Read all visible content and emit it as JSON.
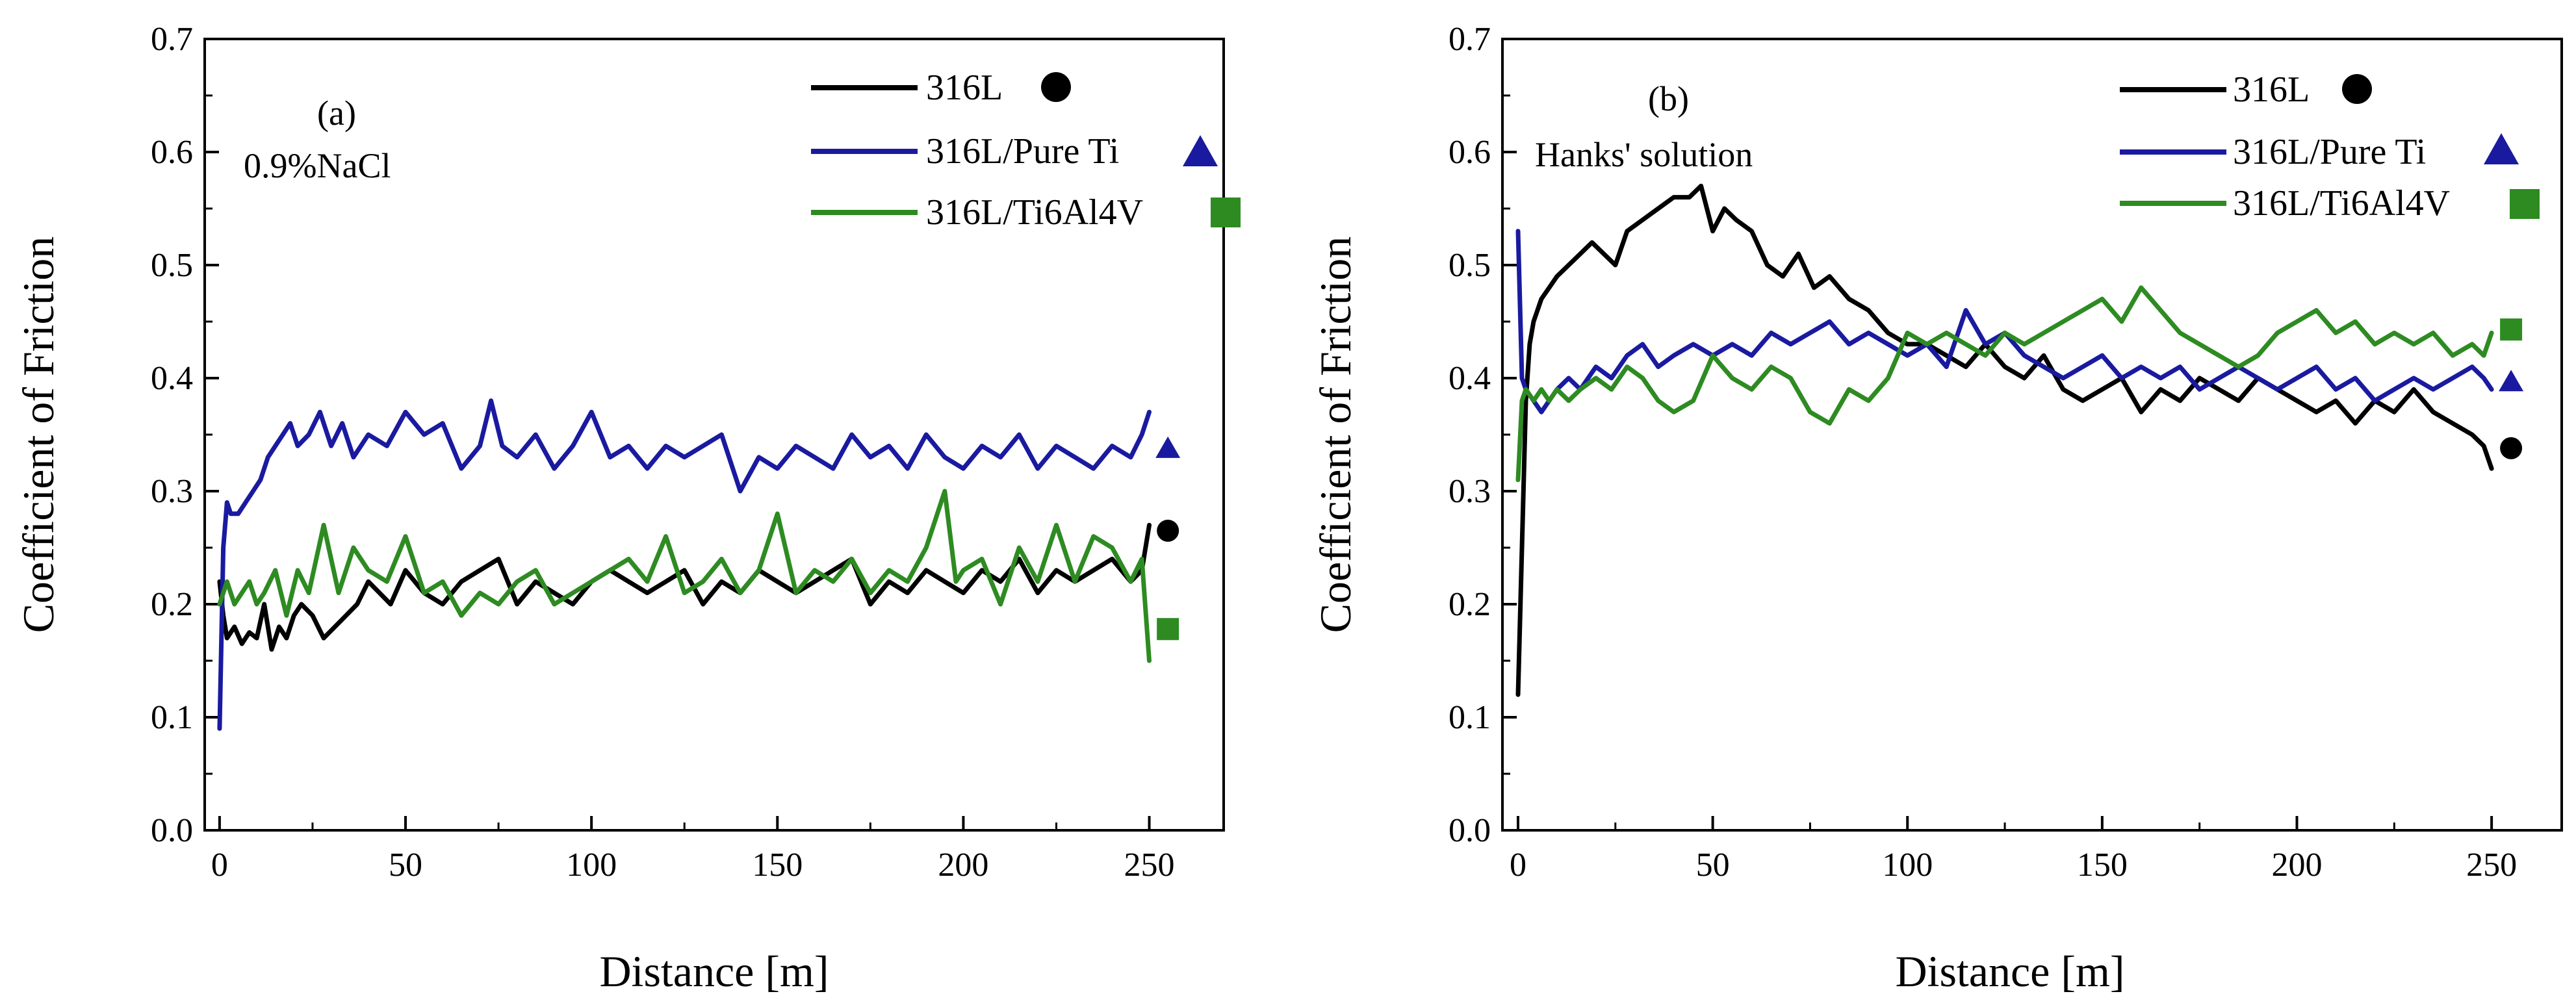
{
  "chart_data": [
    {
      "panel": "(a)",
      "type": "line",
      "title": "",
      "annotations": [
        "(a)",
        "0.9%NaCl"
      ],
      "xlabel": "Distance [m]",
      "ylabel": "Coefficient of Friction",
      "xlim": [
        -4,
        270
      ],
      "ylim": [
        0.0,
        0.7
      ],
      "xticks": [
        0,
        50,
        100,
        150,
        200,
        250
      ],
      "xtick_labels": [
        "0",
        "50",
        "100",
        "150",
        "200",
        "250"
      ],
      "yticks": [
        0.0,
        0.1,
        0.2,
        0.3,
        0.4,
        0.5,
        0.6,
        0.7
      ],
      "ytick_labels": [
        "0.0",
        "0.1",
        "0.2",
        "0.3",
        "0.4",
        "0.5",
        "0.6",
        "0.7"
      ],
      "legend_position": "top-right",
      "series": [
        {
          "name": "316L",
          "color": "#000000",
          "marker": "circle",
          "marker_point": [
            255,
            0.265
          ],
          "x": [
            0,
            1,
            2,
            4,
            6,
            8,
            10,
            12,
            14,
            16,
            18,
            20,
            22,
            25,
            28,
            31,
            34,
            37,
            40,
            43,
            46,
            50,
            55,
            60,
            65,
            70,
            75,
            80,
            85,
            90,
            95,
            100,
            105,
            110,
            115,
            120,
            125,
            130,
            135,
            140,
            145,
            150,
            155,
            160,
            165,
            170,
            175,
            180,
            185,
            190,
            195,
            200,
            205,
            210,
            215,
            220,
            225,
            230,
            235,
            240,
            245,
            248,
            250
          ],
          "values": [
            0.22,
            0.19,
            0.17,
            0.18,
            0.165,
            0.175,
            0.17,
            0.2,
            0.16,
            0.18,
            0.17,
            0.19,
            0.2,
            0.19,
            0.17,
            0.18,
            0.19,
            0.2,
            0.22,
            0.21,
            0.2,
            0.23,
            0.21,
            0.2,
            0.22,
            0.23,
            0.24,
            0.2,
            0.22,
            0.21,
            0.2,
            0.22,
            0.23,
            0.22,
            0.21,
            0.22,
            0.23,
            0.2,
            0.22,
            0.21,
            0.23,
            0.22,
            0.21,
            0.22,
            0.23,
            0.24,
            0.2,
            0.22,
            0.21,
            0.23,
            0.22,
            0.21,
            0.23,
            0.22,
            0.24,
            0.21,
            0.23,
            0.22,
            0.23,
            0.24,
            0.22,
            0.23,
            0.27
          ]
        },
        {
          "name": "316L/Pure Ti",
          "color": "#1a1aa0",
          "marker": "triangle",
          "marker_point": [
            255,
            0.338
          ],
          "x": [
            0,
            1,
            2,
            3,
            5,
            7,
            9,
            11,
            13,
            15,
            17,
            19,
            21,
            24,
            27,
            30,
            33,
            36,
            40,
            45,
            50,
            55,
            60,
            65,
            70,
            73,
            76,
            80,
            85,
            90,
            95,
            100,
            105,
            110,
            115,
            120,
            125,
            130,
            135,
            140,
            145,
            150,
            155,
            160,
            165,
            170,
            175,
            180,
            185,
            190,
            195,
            200,
            205,
            210,
            215,
            220,
            225,
            230,
            235,
            240,
            245,
            248,
            250
          ],
          "values": [
            0.09,
            0.25,
            0.29,
            0.28,
            0.28,
            0.29,
            0.3,
            0.31,
            0.33,
            0.34,
            0.35,
            0.36,
            0.34,
            0.35,
            0.37,
            0.34,
            0.36,
            0.33,
            0.35,
            0.34,
            0.37,
            0.35,
            0.36,
            0.32,
            0.34,
            0.38,
            0.34,
            0.33,
            0.35,
            0.32,
            0.34,
            0.37,
            0.33,
            0.34,
            0.32,
            0.34,
            0.33,
            0.34,
            0.35,
            0.3,
            0.33,
            0.32,
            0.34,
            0.33,
            0.32,
            0.35,
            0.33,
            0.34,
            0.32,
            0.35,
            0.33,
            0.32,
            0.34,
            0.33,
            0.35,
            0.32,
            0.34,
            0.33,
            0.32,
            0.34,
            0.33,
            0.35,
            0.37
          ]
        },
        {
          "name": "316L/Ti6Al4V",
          "color": "#2e8b22",
          "marker": "square",
          "marker_point": [
            255,
            0.178
          ],
          "x": [
            0,
            2,
            4,
            6,
            8,
            10,
            12,
            15,
            18,
            21,
            24,
            28,
            32,
            36,
            40,
            45,
            50,
            55,
            60,
            65,
            70,
            75,
            80,
            85,
            90,
            95,
            100,
            105,
            110,
            115,
            120,
            125,
            130,
            135,
            140,
            145,
            150,
            155,
            160,
            165,
            170,
            175,
            180,
            185,
            190,
            195,
            198,
            200,
            205,
            210,
            215,
            220,
            225,
            230,
            235,
            240,
            245,
            248,
            250
          ],
          "values": [
            0.2,
            0.22,
            0.2,
            0.21,
            0.22,
            0.2,
            0.21,
            0.23,
            0.19,
            0.23,
            0.21,
            0.27,
            0.21,
            0.25,
            0.23,
            0.22,
            0.26,
            0.21,
            0.22,
            0.19,
            0.21,
            0.2,
            0.22,
            0.23,
            0.2,
            0.21,
            0.22,
            0.23,
            0.24,
            0.22,
            0.26,
            0.21,
            0.22,
            0.24,
            0.21,
            0.23,
            0.28,
            0.21,
            0.23,
            0.22,
            0.24,
            0.21,
            0.23,
            0.22,
            0.25,
            0.3,
            0.22,
            0.23,
            0.24,
            0.2,
            0.25,
            0.22,
            0.27,
            0.22,
            0.26,
            0.25,
            0.22,
            0.24,
            0.15
          ]
        }
      ]
    },
    {
      "panel": "(b)",
      "type": "line",
      "title": "",
      "annotations": [
        "(b)",
        "Hanks' solution"
      ],
      "xlabel": "Distance [m]",
      "ylabel": "Coefficient of Friction",
      "xlim": [
        -4,
        268
      ],
      "ylim": [
        0.0,
        0.7
      ],
      "xticks": [
        0,
        50,
        100,
        150,
        200,
        250
      ],
      "xtick_labels": [
        "0",
        "50",
        "100",
        "150",
        "200",
        "250"
      ],
      "yticks": [
        0.0,
        0.1,
        0.2,
        0.3,
        0.4,
        0.5,
        0.6,
        0.7
      ],
      "ytick_labels": [
        "0.0",
        "0.1",
        "0.2",
        "0.3",
        "0.4",
        "0.5",
        "0.6",
        "0.7"
      ],
      "legend_position": "top-right",
      "series": [
        {
          "name": "316L",
          "color": "#000000",
          "marker": "circle",
          "marker_point": [
            255,
            0.338
          ],
          "x": [
            0,
            1,
            2,
            3,
            4,
            6,
            8,
            10,
            13,
            16,
            19,
            22,
            25,
            28,
            32,
            36,
            40,
            44,
            47,
            50,
            53,
            56,
            60,
            64,
            68,
            72,
            76,
            80,
            85,
            90,
            95,
            100,
            105,
            110,
            115,
            120,
            125,
            130,
            135,
            140,
            145,
            150,
            155,
            160,
            165,
            170,
            175,
            180,
            185,
            190,
            195,
            200,
            205,
            210,
            215,
            220,
            225,
            230,
            235,
            240,
            245,
            248,
            250
          ],
          "values": [
            0.12,
            0.25,
            0.38,
            0.43,
            0.45,
            0.47,
            0.48,
            0.49,
            0.5,
            0.51,
            0.52,
            0.51,
            0.5,
            0.53,
            0.54,
            0.55,
            0.56,
            0.56,
            0.57,
            0.53,
            0.55,
            0.54,
            0.53,
            0.5,
            0.49,
            0.51,
            0.48,
            0.49,
            0.47,
            0.46,
            0.44,
            0.43,
            0.43,
            0.42,
            0.41,
            0.43,
            0.41,
            0.4,
            0.42,
            0.39,
            0.38,
            0.39,
            0.4,
            0.37,
            0.39,
            0.38,
            0.4,
            0.39,
            0.38,
            0.4,
            0.39,
            0.38,
            0.37,
            0.38,
            0.36,
            0.38,
            0.37,
            0.39,
            0.37,
            0.36,
            0.35,
            0.34,
            0.32
          ]
        },
        {
          "name": "316L/Pure Ti",
          "color": "#1a1aa0",
          "marker": "triangle",
          "marker_point": [
            255,
            0.397
          ],
          "x": [
            0,
            1,
            2,
            4,
            6,
            8,
            10,
            13,
            16,
            20,
            24,
            28,
            32,
            36,
            40,
            45,
            50,
            55,
            60,
            65,
            70,
            75,
            80,
            85,
            90,
            95,
            100,
            105,
            110,
            115,
            120,
            125,
            130,
            135,
            140,
            145,
            150,
            155,
            160,
            165,
            170,
            175,
            180,
            185,
            190,
            195,
            200,
            205,
            210,
            215,
            220,
            225,
            230,
            235,
            240,
            245,
            248,
            250
          ],
          "values": [
            0.53,
            0.4,
            0.39,
            0.38,
            0.37,
            0.38,
            0.39,
            0.4,
            0.39,
            0.41,
            0.4,
            0.42,
            0.43,
            0.41,
            0.42,
            0.43,
            0.42,
            0.43,
            0.42,
            0.44,
            0.43,
            0.44,
            0.45,
            0.43,
            0.44,
            0.43,
            0.42,
            0.43,
            0.41,
            0.46,
            0.43,
            0.44,
            0.42,
            0.41,
            0.4,
            0.41,
            0.42,
            0.4,
            0.41,
            0.4,
            0.41,
            0.39,
            0.4,
            0.41,
            0.4,
            0.39,
            0.4,
            0.41,
            0.39,
            0.4,
            0.38,
            0.39,
            0.4,
            0.39,
            0.4,
            0.41,
            0.4,
            0.39
          ]
        },
        {
          "name": "316L/Ti6Al4V",
          "color": "#2e8b22",
          "marker": "square",
          "marker_point": [
            255,
            0.443
          ],
          "x": [
            0,
            1,
            2,
            4,
            6,
            8,
            10,
            13,
            16,
            20,
            24,
            28,
            32,
            36,
            40,
            45,
            50,
            55,
            60,
            65,
            70,
            75,
            80,
            85,
            90,
            95,
            100,
            105,
            110,
            115,
            120,
            125,
            130,
            135,
            140,
            145,
            150,
            155,
            160,
            165,
            170,
            175,
            180,
            185,
            190,
            195,
            200,
            205,
            210,
            215,
            220,
            225,
            230,
            235,
            240,
            245,
            248,
            250
          ],
          "values": [
            0.31,
            0.38,
            0.39,
            0.38,
            0.39,
            0.38,
            0.39,
            0.38,
            0.39,
            0.4,
            0.39,
            0.41,
            0.4,
            0.38,
            0.37,
            0.38,
            0.42,
            0.4,
            0.39,
            0.41,
            0.4,
            0.37,
            0.36,
            0.39,
            0.38,
            0.4,
            0.44,
            0.43,
            0.44,
            0.43,
            0.42,
            0.44,
            0.43,
            0.44,
            0.45,
            0.46,
            0.47,
            0.45,
            0.48,
            0.46,
            0.44,
            0.43,
            0.42,
            0.41,
            0.42,
            0.44,
            0.45,
            0.46,
            0.44,
            0.45,
            0.43,
            0.44,
            0.43,
            0.44,
            0.42,
            0.43,
            0.42,
            0.44
          ]
        }
      ]
    }
  ]
}
